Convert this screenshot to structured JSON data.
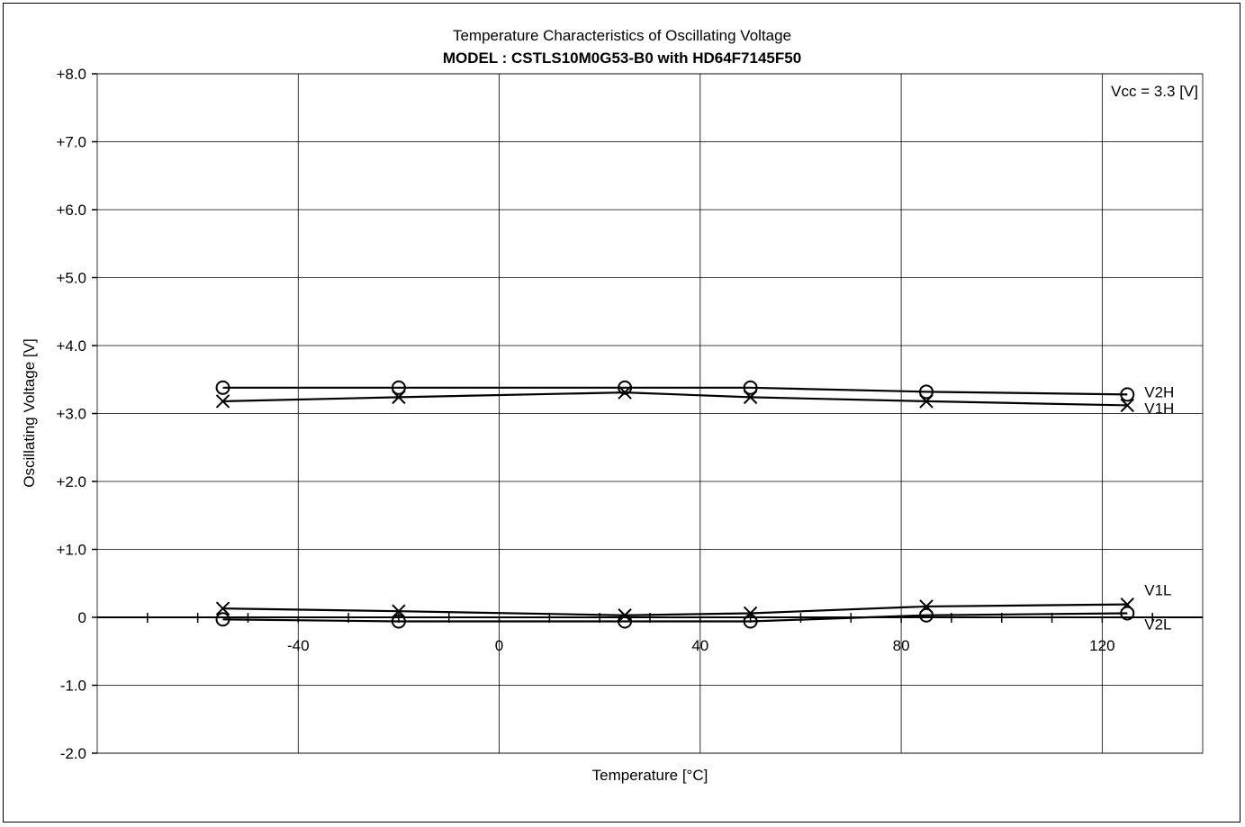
{
  "chart_data": {
    "type": "line",
    "title": "Temperature Characteristics of Oscillating Voltage",
    "subtitle": "MODEL : CSTLS10M0G53-B0 with HD64F7145F50",
    "xlabel": "Temperature [°C]",
    "ylabel": "Oscillating Voltage [V]",
    "annotation": "Vcc = 3.3 [V]",
    "xlim": [
      -80,
      140
    ],
    "ylim": [
      -2.0,
      8.0
    ],
    "x_ticks": [
      -40,
      0,
      40,
      80,
      120
    ],
    "x_tick_labels": [
      "-40",
      "0",
      "40",
      "80",
      "120"
    ],
    "y_ticks": [
      8,
      7,
      6,
      5,
      4,
      3,
      2,
      1,
      0,
      -1,
      -2
    ],
    "y_tick_labels": [
      "+8.0",
      "+7.0",
      "+6.0",
      "+5.0",
      "+4.0",
      "+3.0",
      "+2.0",
      "+1.0",
      "0",
      "-1.0",
      "-2.0"
    ],
    "x_minor_step": 10,
    "grid": true,
    "x": [
      -55,
      -20,
      25,
      50,
      85,
      125
    ],
    "series": [
      {
        "name": "V2H",
        "marker": "circle",
        "values": [
          3.38,
          3.38,
          3.38,
          3.38,
          3.32,
          3.28
        ]
      },
      {
        "name": "V1H",
        "marker": "cross",
        "values": [
          3.18,
          3.24,
          3.31,
          3.24,
          3.18,
          3.12
        ]
      },
      {
        "name": "V1L",
        "marker": "cross",
        "values": [
          0.13,
          0.09,
          0.03,
          0.06,
          0.16,
          0.19
        ]
      },
      {
        "name": "V2L",
        "marker": "circle",
        "values": [
          -0.03,
          -0.06,
          -0.06,
          -0.06,
          0.03,
          0.06
        ]
      }
    ]
  }
}
